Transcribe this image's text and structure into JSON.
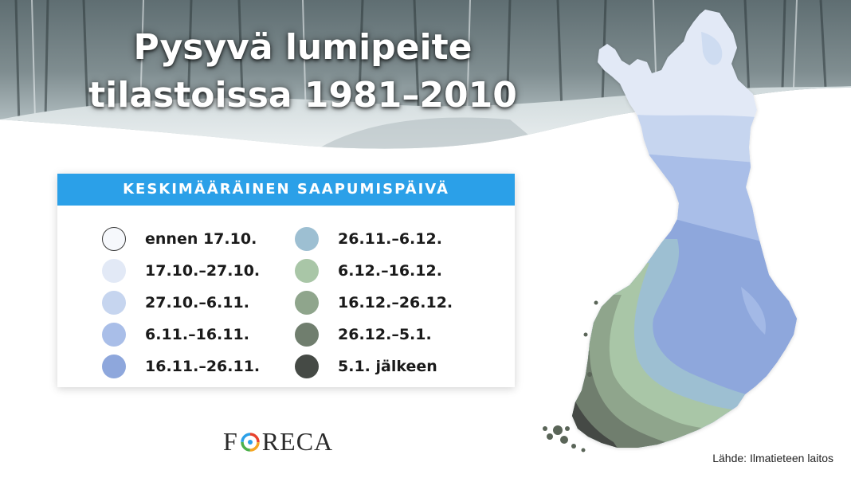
{
  "title": {
    "line1": "Pysyvä lumipeite",
    "line2": "tilastoissa 1981–2010"
  },
  "legend": {
    "header": "KESKIMÄÄRÄINEN SAAPUMISPÄIVÄ",
    "left": [
      {
        "label": "ennen 17.10.",
        "color": "#f6f8fc",
        "outline": "#3a3a3a"
      },
      {
        "label": "17.10.–27.10.",
        "color": "#e2e9f6"
      },
      {
        "label": "27.10.–6.11.",
        "color": "#c6d5ef"
      },
      {
        "label": "6.11.–16.11.",
        "color": "#a9bee8"
      },
      {
        "label": "16.11.–26.11.",
        "color": "#8ea7dc"
      }
    ],
    "right": [
      {
        "label": "26.11.–6.12.",
        "color": "#9dbfd2"
      },
      {
        "label": "6.12.–16.12.",
        "color": "#a9c6a7"
      },
      {
        "label": "16.12.–26.12.",
        "color": "#8fa58c"
      },
      {
        "label": "26.12.–5.1.",
        "color": "#707e6e"
      },
      {
        "label": "5.1. jälkeen",
        "color": "#454a45"
      }
    ]
  },
  "logo": {
    "before": "F",
    "after": "RECA",
    "ring_colors": [
      "#e8412c",
      "#f5a623",
      "#2ba0e8",
      "#4bb04b"
    ]
  },
  "source": "Lähde: Ilmatieteen laitos"
}
